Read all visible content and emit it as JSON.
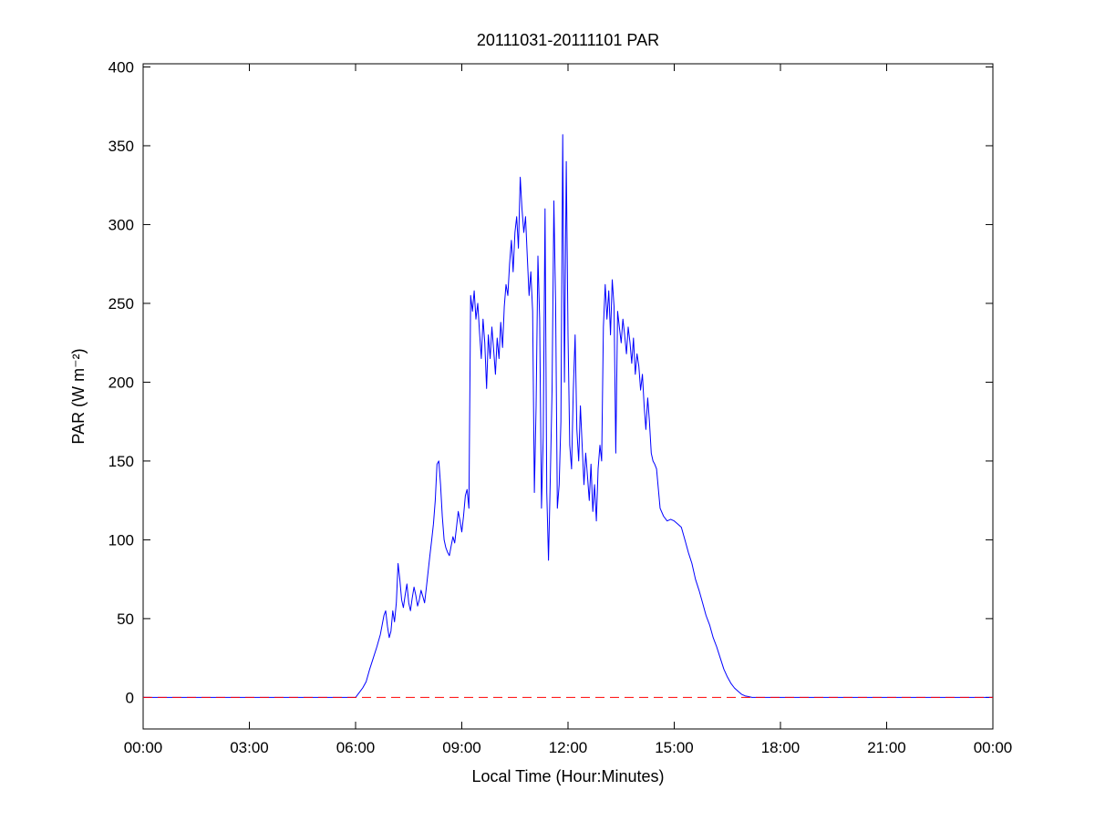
{
  "figure": {
    "background": "#ffffff",
    "axis_color": "#000000"
  },
  "chart_data": {
    "type": "line",
    "title": "20111031-20111101 PAR",
    "xlabel": "Local Time (Hour:Minutes)",
    "ylabel": "PAR (W m⁻²)",
    "xlim": [
      0,
      24
    ],
    "ylim": [
      -20,
      402
    ],
    "grid": false,
    "legend": null,
    "xticks": [
      {
        "value": 0,
        "label": "00:00"
      },
      {
        "value": 3,
        "label": "03:00"
      },
      {
        "value": 6,
        "label": "06:00"
      },
      {
        "value": 9,
        "label": "09:00"
      },
      {
        "value": 12,
        "label": "12:00"
      },
      {
        "value": 15,
        "label": "15:00"
      },
      {
        "value": 18,
        "label": "18:00"
      },
      {
        "value": 21,
        "label": "21:00"
      },
      {
        "value": 24,
        "label": "00:00"
      }
    ],
    "yticks": [
      {
        "value": 0,
        "label": "0"
      },
      {
        "value": 50,
        "label": "50"
      },
      {
        "value": 100,
        "label": "100"
      },
      {
        "value": 150,
        "label": "150"
      },
      {
        "value": 200,
        "label": "200"
      },
      {
        "value": 250,
        "label": "250"
      },
      {
        "value": 300,
        "label": "300"
      },
      {
        "value": 350,
        "label": "350"
      },
      {
        "value": 400,
        "label": "400"
      }
    ],
    "reference_lines": [
      {
        "name": "zero-line",
        "y": 0,
        "color": "#ff0000",
        "style": "dashed"
      }
    ],
    "series": [
      {
        "name": "PAR",
        "color": "#0000ff",
        "x": [
          0,
          1,
          2,
          3,
          4,
          5,
          5.5,
          5.9,
          6,
          6.1,
          6.2,
          6.3,
          6.4,
          6.5,
          6.6,
          6.7,
          6.8,
          6.85,
          6.9,
          6.95,
          7,
          7.05,
          7.1,
          7.15,
          7.2,
          7.25,
          7.3,
          7.35,
          7.4,
          7.45,
          7.5,
          7.55,
          7.6,
          7.65,
          7.7,
          7.75,
          7.8,
          7.85,
          7.9,
          7.95,
          8,
          8.05,
          8.1,
          8.15,
          8.2,
          8.25,
          8.3,
          8.35,
          8.4,
          8.45,
          8.5,
          8.55,
          8.6,
          8.65,
          8.7,
          8.75,
          8.8,
          8.85,
          8.9,
          8.95,
          9,
          9.05,
          9.1,
          9.15,
          9.2,
          9.25,
          9.3,
          9.35,
          9.4,
          9.45,
          9.5,
          9.55,
          9.6,
          9.65,
          9.7,
          9.75,
          9.8,
          9.85,
          9.9,
          9.95,
          10,
          10.05,
          10.1,
          10.15,
          10.2,
          10.25,
          10.3,
          10.35,
          10.4,
          10.45,
          10.5,
          10.55,
          10.6,
          10.65,
          10.7,
          10.75,
          10.8,
          10.85,
          10.9,
          10.95,
          11,
          11.05,
          11.1,
          11.15,
          11.2,
          11.25,
          11.3,
          11.35,
          11.4,
          11.45,
          11.5,
          11.55,
          11.6,
          11.65,
          11.7,
          11.75,
          11.8,
          11.85,
          11.9,
          11.95,
          12,
          12.05,
          12.1,
          12.15,
          12.2,
          12.25,
          12.3,
          12.35,
          12.4,
          12.45,
          12.5,
          12.55,
          12.6,
          12.65,
          12.7,
          12.75,
          12.8,
          12.85,
          12.9,
          12.95,
          13,
          13.05,
          13.1,
          13.15,
          13.2,
          13.25,
          13.3,
          13.35,
          13.4,
          13.45,
          13.5,
          13.55,
          13.6,
          13.65,
          13.7,
          13.75,
          13.8,
          13.85,
          13.9,
          13.95,
          14,
          14.05,
          14.1,
          14.15,
          14.2,
          14.25,
          14.3,
          14.35,
          14.4,
          14.45,
          14.5,
          14.6,
          14.7,
          14.8,
          14.9,
          15,
          15.1,
          15.2,
          15.3,
          15.4,
          15.5,
          15.6,
          15.7,
          15.8,
          15.9,
          16,
          16.1,
          16.2,
          16.3,
          16.4,
          16.5,
          16.6,
          16.7,
          16.8,
          16.9,
          17,
          17.1,
          17.2,
          17.35,
          18,
          19,
          20,
          21,
          22,
          23,
          24
        ],
        "y": [
          0,
          0,
          0,
          0,
          0,
          0,
          0,
          0,
          0,
          3,
          6,
          10,
          18,
          25,
          32,
          40,
          52,
          55,
          45,
          38,
          42,
          55,
          48,
          60,
          85,
          75,
          62,
          57,
          65,
          72,
          60,
          55,
          63,
          70,
          65,
          58,
          62,
          68,
          64,
          60,
          70,
          80,
          90,
          100,
          110,
          125,
          148,
          150,
          135,
          115,
          100,
          95,
          92,
          90,
          96,
          102,
          98,
          108,
          118,
          112,
          105,
          115,
          128,
          132,
          120,
          255,
          245,
          258,
          240,
          250,
          232,
          215,
          240,
          225,
          196,
          230,
          215,
          235,
          220,
          205,
          228,
          215,
          238,
          222,
          248,
          262,
          255,
          275,
          290,
          270,
          295,
          305,
          285,
          330,
          310,
          295,
          305,
          280,
          255,
          270,
          245,
          130,
          185,
          280,
          240,
          120,
          165,
          310,
          130,
          87,
          140,
          195,
          315,
          250,
          120,
          135,
          175,
          357,
          200,
          340,
          230,
          160,
          145,
          195,
          230,
          170,
          150,
          185,
          160,
          135,
          155,
          140,
          125,
          148,
          118,
          135,
          112,
          145,
          160,
          150,
          235,
          262,
          240,
          258,
          230,
          265,
          248,
          155,
          245,
          235,
          225,
          240,
          230,
          218,
          235,
          225,
          212,
          228,
          205,
          218,
          210,
          195,
          205,
          185,
          170,
          190,
          175,
          155,
          150,
          148,
          145,
          120,
          115,
          112,
          113,
          112,
          110,
          108,
          100,
          92,
          85,
          75,
          68,
          60,
          52,
          46,
          38,
          32,
          25,
          18,
          13,
          9,
          6,
          4,
          2,
          1,
          0.5,
          0,
          0,
          0,
          0,
          0,
          0,
          0,
          0,
          0
        ]
      }
    ]
  }
}
